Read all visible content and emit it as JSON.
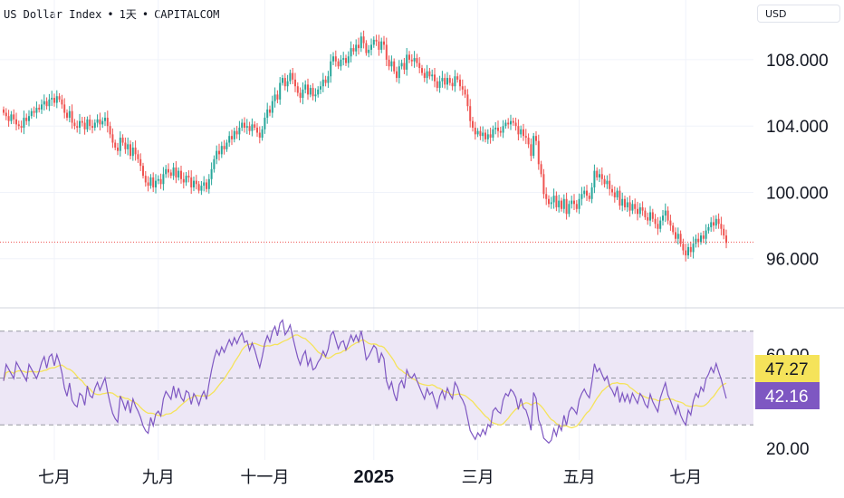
{
  "header": {
    "symbol": "US Dollar Index",
    "interval": "1天",
    "source": "CAPITALCOM",
    "separator": "•",
    "currency": "USD"
  },
  "colors": {
    "up": "#26a69a",
    "down": "#ef5350",
    "rsi": "#7e57c2",
    "rsi_ma": "#f5e35a",
    "rsi_band": "#ede7f6",
    "grid": "#f0f3fa"
  },
  "chart_data": [
    {
      "type": "candlestick",
      "ylim": [
        93.2,
        111.6
      ],
      "y_ticks": [
        "108.000",
        "104.000",
        "100.000",
        "96.000"
      ],
      "y_tick_values": [
        108,
        104,
        100,
        96
      ],
      "last_price_line": 97.0,
      "x_ticks": [
        "七月",
        "九月",
        "十一月",
        "2025",
        "三月",
        "五月",
        "七月"
      ],
      "x_tick_bold": [
        false,
        false,
        false,
        true,
        false,
        false,
        false
      ],
      "close": [
        104.8,
        104.6,
        104.3,
        104.7,
        104.4,
        104.1,
        104.0,
        103.9,
        104.5,
        104.3,
        104.6,
        104.9,
        104.8,
        105.1,
        105.0,
        105.3,
        105.5,
        105.2,
        105.6,
        105.7,
        105.4,
        105.8,
        105.6,
        105.3,
        104.8,
        104.5,
        104.9,
        104.2,
        104.0,
        103.9,
        104.3,
        104.2,
        103.8,
        104.4,
        104.0,
        103.9,
        104.2,
        104.4,
        104.1,
        104.3,
        104.5,
        104.0,
        103.5,
        103.0,
        102.7,
        102.5,
        103.3,
        103.0,
        102.6,
        102.9,
        102.2,
        102.7,
        102.3,
        102.0,
        101.6,
        101.0,
        100.6,
        100.4,
        100.9,
        100.3,
        100.7,
        100.8,
        100.5,
        101.1,
        101.4,
        101.2,
        101.0,
        101.5,
        100.9,
        101.3,
        100.8,
        100.6,
        101.0,
        100.9,
        100.3,
        100.7,
        100.5,
        100.1,
        100.4,
        100.6,
        100.2,
        100.8,
        101.4,
        102.0,
        102.5,
        102.3,
        102.8,
        102.6,
        103.0,
        103.4,
        103.2,
        103.7,
        103.5,
        103.9,
        104.2,
        103.9,
        104.0,
        103.7,
        104.1,
        103.9,
        103.6,
        103.3,
        103.8,
        104.5,
        105.0,
        104.8,
        105.5,
        105.9,
        105.6,
        106.6,
        106.9,
        106.4,
        106.7,
        107.2,
        106.8,
        106.4,
        106.0,
        105.7,
        106.2,
        106.5,
        105.9,
        106.3,
        105.8,
        105.9,
        106.2,
        106.4,
        106.8,
        106.6,
        107.0,
        107.9,
        108.2,
        107.9,
        107.6,
        108.0,
        108.1,
        107.8,
        108.2,
        108.7,
        108.5,
        108.9,
        108.7,
        109.4,
        109.0,
        108.4,
        108.6,
        108.9,
        109.2,
        109.1,
        108.6,
        109.1,
        108.9,
        108.0,
        107.6,
        107.9,
        107.3,
        106.9,
        107.6,
        107.8,
        107.4,
        108.3,
        108.0,
        107.9,
        108.1,
        107.8,
        107.5,
        107.2,
        106.9,
        107.3,
        107.0,
        107.1,
        106.7,
        106.3,
        106.7,
        106.9,
        106.5,
        106.9,
        106.6,
        106.4,
        107.0,
        106.8,
        106.4,
        106.2,
        105.9,
        105.2,
        104.3,
        103.9,
        103.5,
        103.7,
        103.4,
        103.6,
        103.2,
        103.5,
        103.3,
        103.8,
        103.9,
        103.7,
        103.6,
        104.0,
        104.2,
        104.1,
        104.3,
        104.2,
        104.0,
        103.5,
        103.8,
        103.4,
        103.3,
        102.9,
        102.2,
        103.4,
        103.1,
        101.7,
        101.1,
        99.9,
        99.6,
        99.3,
        99.4,
        99.8,
        99.1,
        99.5,
        99.0,
        99.6,
        98.7,
        99.3,
        99.5,
        99.3,
        99.0,
        99.6,
        99.9,
        100.1,
        99.8,
        99.6,
        100.3,
        101.3,
        100.9,
        101.1,
        100.8,
        100.5,
        100.7,
        100.2,
        100.0,
        99.7,
        100.1,
        99.2,
        99.6,
        99.1,
        99.4,
        98.9,
        99.3,
        99.0,
        98.7,
        99.1,
        98.9,
        98.5,
        98.3,
        98.8,
        98.4,
        98.1,
        97.8,
        98.3,
        98.6,
        98.9,
        98.3,
        98.0,
        97.6,
        97.2,
        97.5,
        96.9,
        96.5,
        96.2,
        96.7,
        96.4,
        96.9,
        97.2,
        97.0,
        97.4,
        97.2,
        97.7,
        97.9,
        98.2,
        98.0,
        98.4,
        98.1,
        97.8,
        97.4,
        96.95
      ],
      "rsi_ylim": [
        15,
        78
      ],
      "rsi_ticks": [
        "60.00",
        "20.00"
      ],
      "rsi_tick_values": [
        60,
        20
      ],
      "rsi_band": [
        70,
        30
      ],
      "rsi_mid": 50,
      "rsi_ma_value": "47.27",
      "rsi_value": "42.16"
    }
  ]
}
